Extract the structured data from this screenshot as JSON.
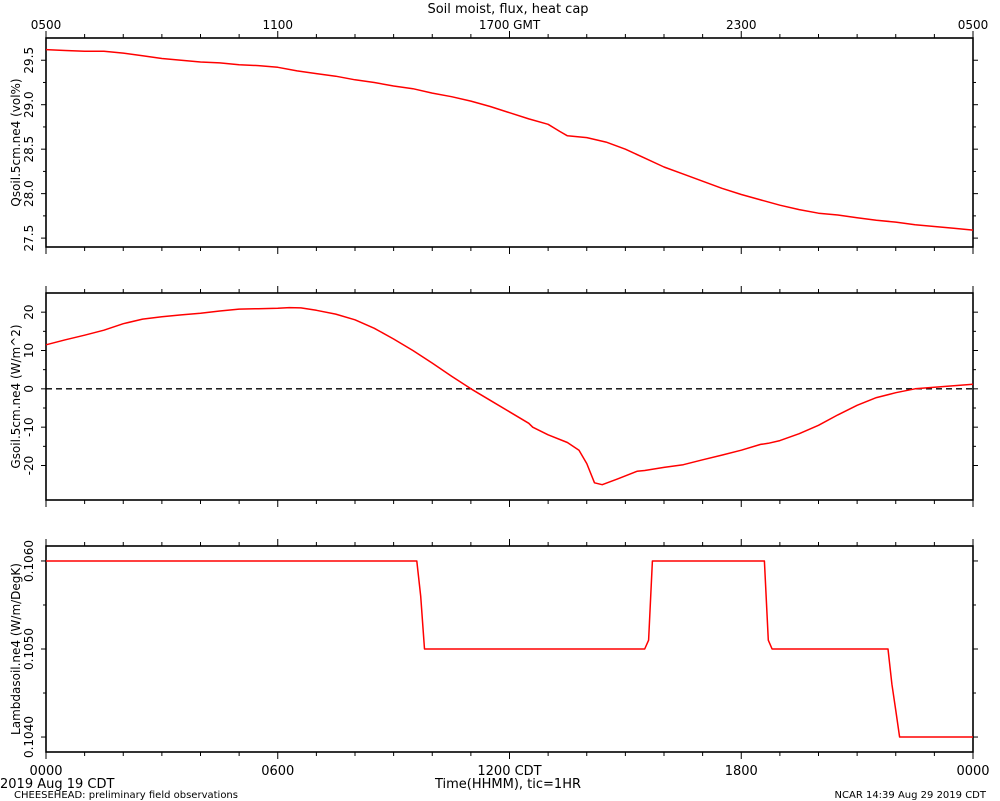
{
  "chart_data": {
    "type": "line",
    "title": "Soil moist, flux, heat cap",
    "top_axis": {
      "ticks": [
        {
          "hours": 0,
          "label": "0500"
        },
        {
          "hours": 6,
          "label": "1100"
        },
        {
          "hours": 12,
          "label": "1700 GMT"
        },
        {
          "hours": 18,
          "label": "2300"
        },
        {
          "hours": 24,
          "label": "0500"
        }
      ]
    },
    "x_axis": {
      "label": "Time(HHMM), tic=1HR",
      "range": [
        0,
        24
      ],
      "ticks": [
        {
          "hours": 0,
          "label": "0000"
        },
        {
          "hours": 6,
          "label": "0600"
        },
        {
          "hours": 12,
          "label": "1200 CDT"
        },
        {
          "hours": 18,
          "label": "1800"
        },
        {
          "hours": 24,
          "label": "0000"
        }
      ]
    },
    "panels": [
      {
        "ylabel": "Qsoil.5cm.ne4 (vol%)",
        "ylim": [
          27.4,
          29.75
        ],
        "ticks": [
          27.5,
          28.0,
          28.5,
          29.0,
          29.5
        ],
        "tick_labels": [
          "27.5",
          "28.0",
          "28.5",
          "29.0",
          "29.5"
        ],
        "series": [
          {
            "color": "#ff0000",
            "points": [
              [
                0,
                29.62
              ],
              [
                0.5,
                29.61
              ],
              [
                1,
                29.6
              ],
              [
                1.5,
                29.6
              ],
              [
                2,
                29.58
              ],
              [
                2.5,
                29.55
              ],
              [
                3,
                29.52
              ],
              [
                3.5,
                29.5
              ],
              [
                4,
                29.48
              ],
              [
                4.5,
                29.47
              ],
              [
                5,
                29.45
              ],
              [
                5.5,
                29.44
              ],
              [
                6,
                29.42
              ],
              [
                6.5,
                29.38
              ],
              [
                7,
                29.35
              ],
              [
                7.5,
                29.32
              ],
              [
                8,
                29.28
              ],
              [
                8.5,
                29.25
              ],
              [
                9,
                29.21
              ],
              [
                9.5,
                29.18
              ],
              [
                10,
                29.13
              ],
              [
                10.5,
                29.09
              ],
              [
                11,
                29.04
              ],
              [
                11.5,
                28.98
              ],
              [
                12,
                28.91
              ],
              [
                12.5,
                28.84
              ],
              [
                13,
                28.78
              ],
              [
                13.3,
                28.7
              ],
              [
                13.5,
                28.65
              ],
              [
                14,
                28.63
              ],
              [
                14.5,
                28.58
              ],
              [
                15,
                28.5
              ],
              [
                15.5,
                28.4
              ],
              [
                16,
                28.3
              ],
              [
                16.5,
                28.22
              ],
              [
                17,
                28.14
              ],
              [
                17.5,
                28.06
              ],
              [
                18,
                27.99
              ],
              [
                18.5,
                27.93
              ],
              [
                19,
                27.87
              ],
              [
                19.5,
                27.82
              ],
              [
                20,
                27.78
              ],
              [
                20.5,
                27.76
              ],
              [
                21,
                27.73
              ],
              [
                21.5,
                27.7
              ],
              [
                22,
                27.68
              ],
              [
                22.5,
                27.65
              ],
              [
                23,
                27.63
              ],
              [
                23.5,
                27.61
              ],
              [
                24,
                27.59
              ]
            ]
          }
        ]
      },
      {
        "ylabel": "Gsoil.5cm.ne4 (W/m^2)",
        "ylim": [
          -29,
          25
        ],
        "ticks": [
          -20,
          -10,
          0,
          10,
          20
        ],
        "tick_labels": [
          "-20",
          "-10",
          "0",
          "10",
          "20"
        ],
        "reference_line": {
          "y": 0,
          "style": "dashed",
          "color": "#000000"
        },
        "series": [
          {
            "color": "#ff0000",
            "points": [
              [
                0,
                11.5
              ],
              [
                0.5,
                12.8
              ],
              [
                1,
                14
              ],
              [
                1.5,
                15.3
              ],
              [
                2,
                17
              ],
              [
                2.5,
                18.2
              ],
              [
                3,
                18.8
              ],
              [
                3.5,
                19.3
              ],
              [
                4,
                19.7
              ],
              [
                4.5,
                20.3
              ],
              [
                5,
                20.8
              ],
              [
                5.5,
                20.9
              ],
              [
                6,
                21
              ],
              [
                6.3,
                21.2
              ],
              [
                6.6,
                21.1
              ],
              [
                7,
                20.5
              ],
              [
                7.5,
                19.5
              ],
              [
                8,
                18
              ],
              [
                8.5,
                15.8
              ],
              [
                9,
                13
              ],
              [
                9.5,
                10
              ],
              [
                10,
                6.7
              ],
              [
                10.5,
                3.3
              ],
              [
                11,
                0
              ],
              [
                11.5,
                -3
              ],
              [
                12,
                -6
              ],
              [
                12.5,
                -9
              ],
              [
                12.6,
                -10
              ],
              [
                13,
                -12
              ],
              [
                13.5,
                -14
              ],
              [
                13.8,
                -16
              ],
              [
                14,
                -19.5
              ],
              [
                14.2,
                -24.5
              ],
              [
                14.4,
                -25
              ],
              [
                14.8,
                -23.5
              ],
              [
                15.3,
                -21.5
              ],
              [
                15.5,
                -21.3
              ],
              [
                16,
                -20.5
              ],
              [
                16.5,
                -19.8
              ],
              [
                17,
                -18.5
              ],
              [
                17.5,
                -17.3
              ],
              [
                18,
                -16
              ],
              [
                18.5,
                -14.5
              ],
              [
                18.7,
                -14.2
              ],
              [
                19,
                -13.5
              ],
              [
                19.5,
                -11.7
              ],
              [
                20,
                -9.5
              ],
              [
                20.5,
                -6.8
              ],
              [
                21,
                -4.3
              ],
              [
                21.5,
                -2.3
              ],
              [
                22,
                -1
              ],
              [
                22.5,
                0
              ],
              [
                23,
                0.4
              ],
              [
                23.5,
                0.8
              ],
              [
                24,
                1.2
              ]
            ]
          }
        ]
      },
      {
        "ylabel": "Lambdasoil.ne4 (W/m/DegK)",
        "ylim": [
          0.10383,
          0.10617
        ],
        "ticks": [
          0.104,
          0.105,
          0.106
        ],
        "tick_labels": [
          "0.1040",
          "0.1050",
          "0.1060"
        ],
        "series": [
          {
            "color": "#ff0000",
            "points": [
              [
                0,
                0.106
              ],
              [
                9.6,
                0.106
              ],
              [
                9.7,
                0.1056
              ],
              [
                9.8,
                0.105
              ],
              [
                15.5,
                0.105
              ],
              [
                15.6,
                0.1051
              ],
              [
                15.7,
                0.106
              ],
              [
                18.6,
                0.106
              ],
              [
                18.7,
                0.1051
              ],
              [
                18.8,
                0.105
              ],
              [
                21.8,
                0.105
              ],
              [
                21.9,
                0.1046
              ],
              [
                22,
                0.1043
              ],
              [
                22.1,
                0.104
              ],
              [
                24,
                0.104
              ]
            ]
          }
        ]
      }
    ]
  },
  "footer": {
    "date": "2019 Aug 19 CDT",
    "project": "CHEESEHEAD: preliminary field observations",
    "credit": "NCAR 14:39 Aug 29 2019 CDT"
  }
}
